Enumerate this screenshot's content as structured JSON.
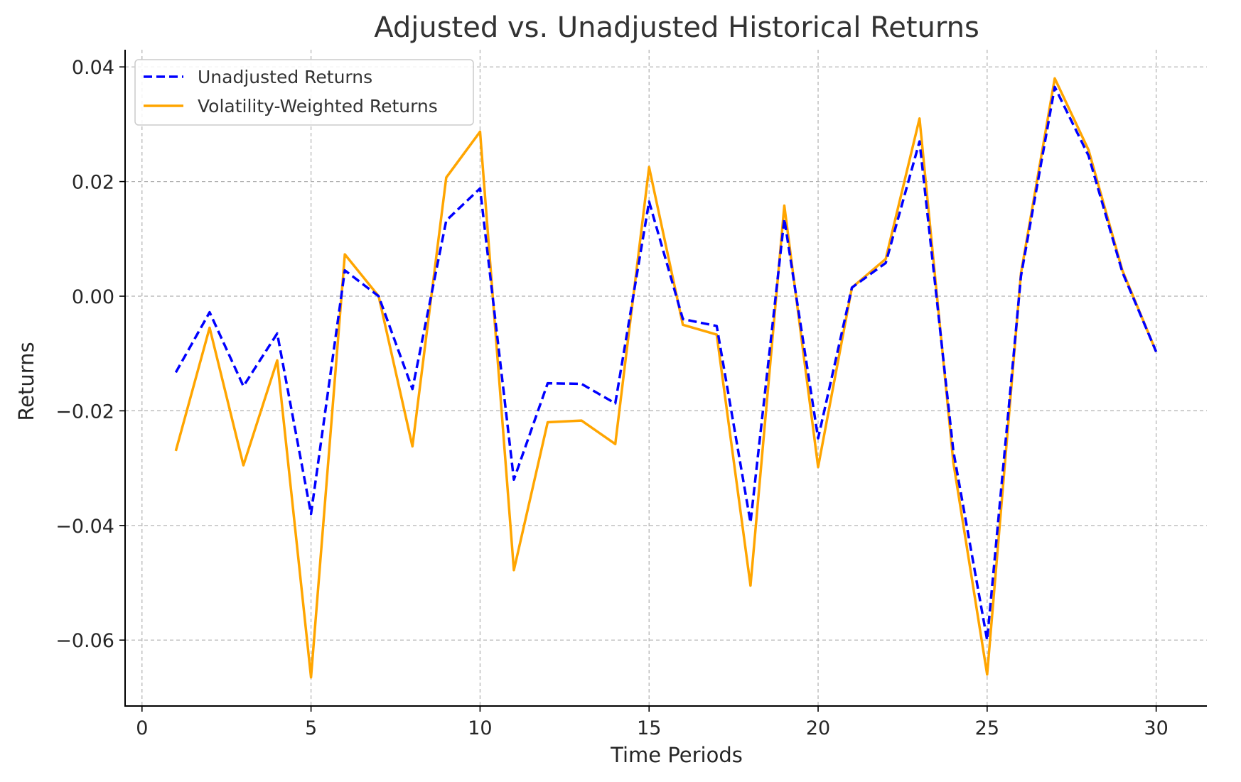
{
  "chart_data": {
    "type": "line",
    "title": "Adjusted vs. Unadjusted Historical Returns",
    "xlabel": "Time Periods",
    "ylabel": "Returns",
    "xlim": [
      -0.5,
      31.5
    ],
    "ylim": [
      -0.0715,
      0.043
    ],
    "xticks": [
      0,
      5,
      10,
      15,
      20,
      25,
      30
    ],
    "yticks": [
      -0.06,
      -0.04,
      -0.02,
      0.0,
      0.02,
      0.04
    ],
    "xtick_labels": [
      "0",
      "5",
      "10",
      "15",
      "20",
      "25",
      "30"
    ],
    "ytick_labels": [
      "−0.06",
      "−0.04",
      "−0.02",
      "0.00",
      "0.02",
      "0.04"
    ],
    "grid": true,
    "legend_position": "top-left",
    "x": [
      1,
      2,
      3,
      4,
      5,
      6,
      7,
      8,
      9,
      10,
      11,
      12,
      13,
      14,
      15,
      16,
      17,
      18,
      19,
      20,
      21,
      22,
      23,
      24,
      25,
      26,
      27,
      28,
      29,
      30
    ],
    "series": [
      {
        "name": "Unadjusted Returns",
        "color": "#0000ff",
        "style": "dashed",
        "values": [
          -0.0133,
          -0.0028,
          -0.0157,
          -0.0065,
          -0.038,
          0.0045,
          0.0,
          -0.0162,
          0.0132,
          0.0188,
          -0.032,
          -0.0152,
          -0.0153,
          -0.0187,
          0.0165,
          -0.004,
          -0.0052,
          -0.0395,
          0.0135,
          -0.0248,
          0.0015,
          0.0058,
          0.027,
          -0.027,
          -0.06,
          0.0035,
          0.0365,
          0.0245,
          0.0042,
          -0.0097
        ]
      },
      {
        "name": "Volatility-Weighted Returns",
        "color": "#ffa500",
        "style": "solid",
        "values": [
          -0.027,
          -0.0055,
          -0.0295,
          -0.0112,
          -0.0665,
          0.0073,
          0.0,
          -0.0262,
          0.0207,
          0.0287,
          -0.0478,
          -0.022,
          -0.0217,
          -0.0258,
          0.0225,
          -0.005,
          -0.0067,
          -0.0505,
          0.0158,
          -0.0298,
          0.0015,
          0.0065,
          0.031,
          -0.029,
          -0.066,
          0.004,
          0.038,
          0.0255,
          0.0045,
          -0.0097
        ]
      }
    ]
  }
}
